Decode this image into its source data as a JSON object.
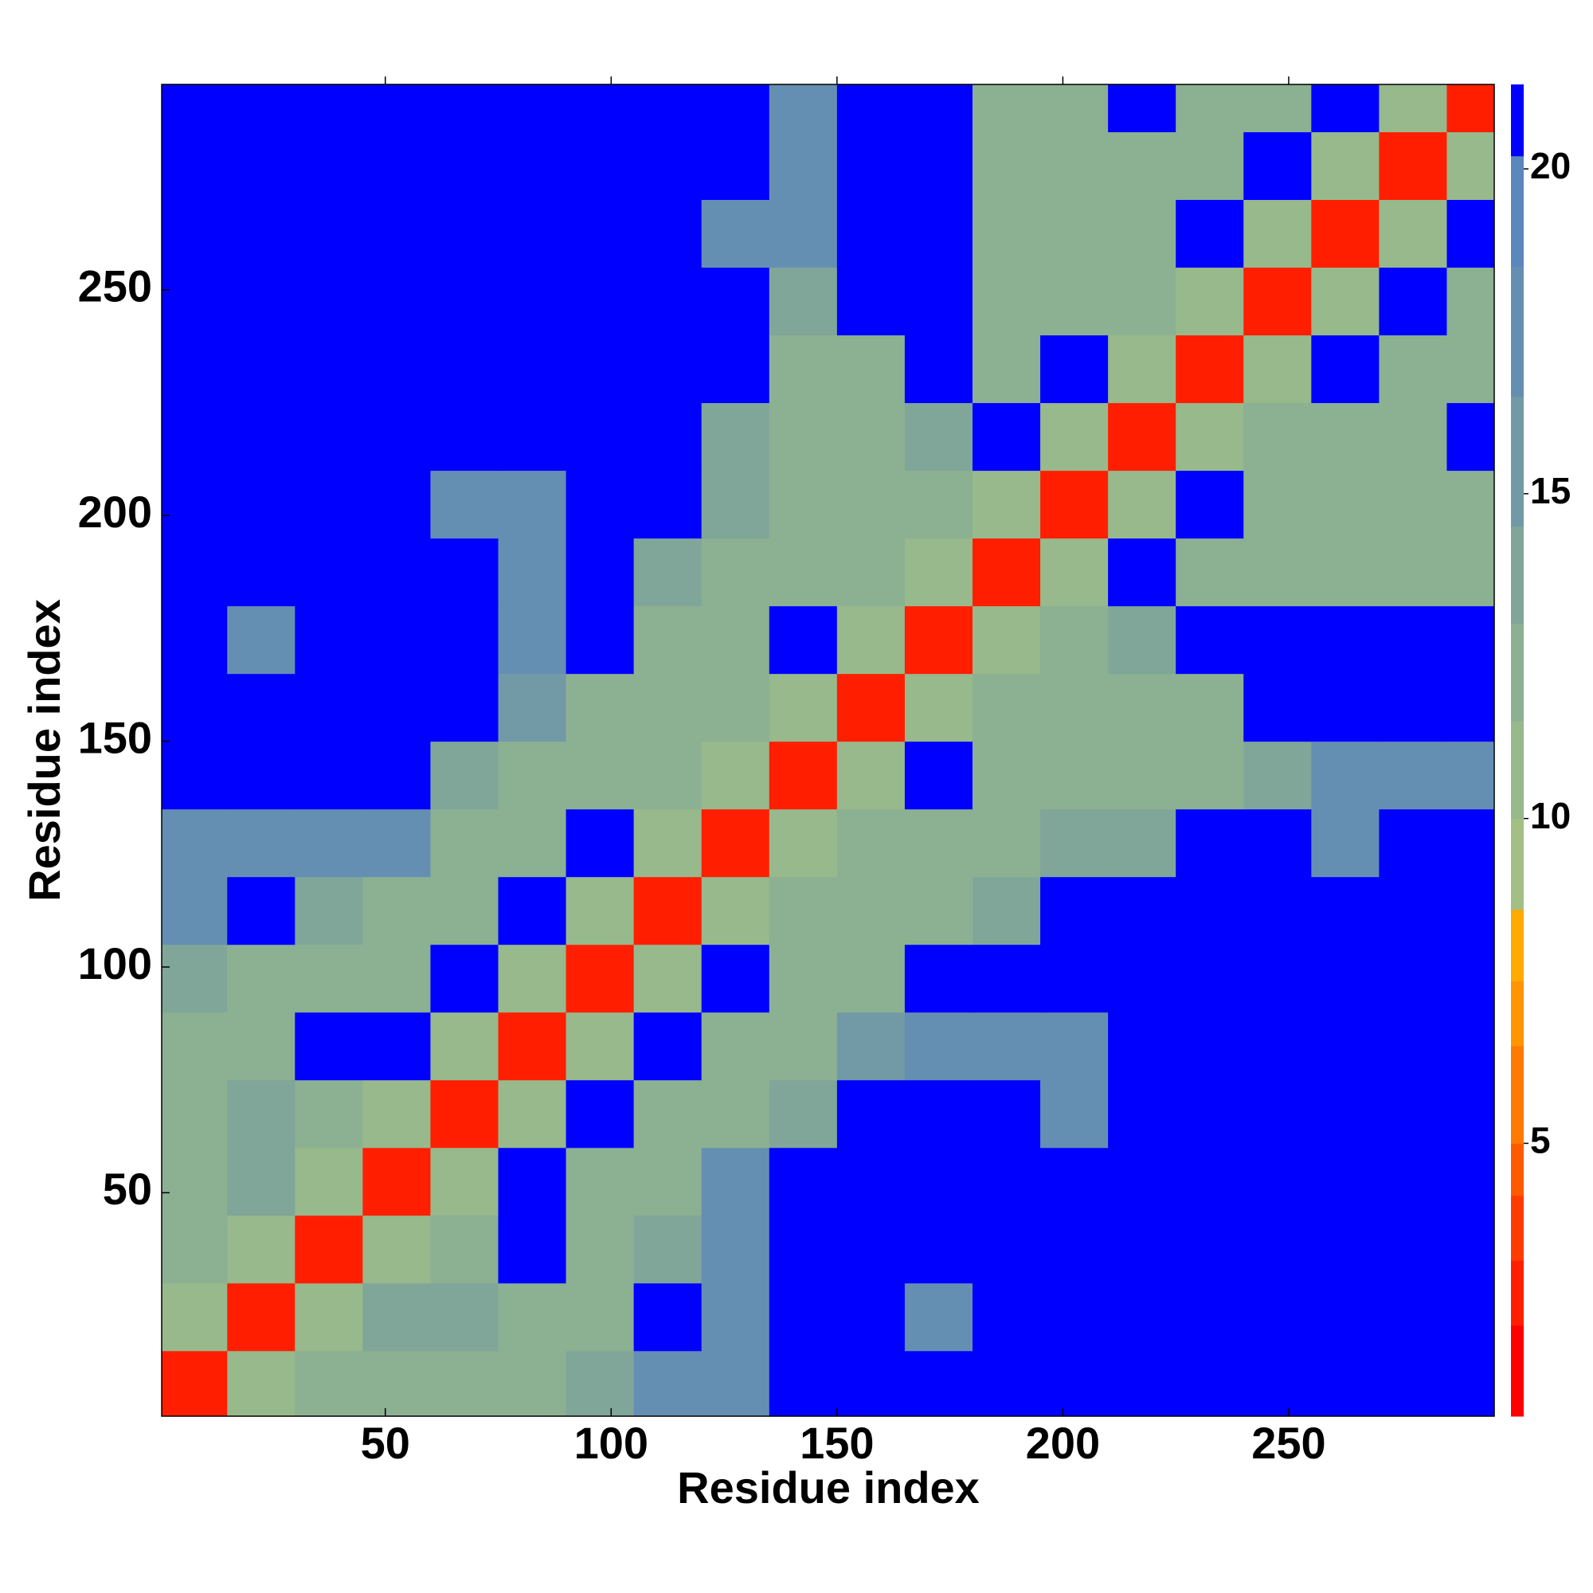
{
  "chart_data": {
    "type": "heatmap",
    "xlabel": "Residue index",
    "ylabel": "Residue index",
    "x": [
      7.5,
      22.5,
      37.5,
      52.5,
      67.5,
      82.5,
      97.5,
      112.5,
      127.5,
      142.5,
      157.5,
      172.5,
      187.5,
      202.5,
      217.5,
      232.5,
      247.5,
      262.5,
      277.5,
      292.5
    ],
    "y": [
      7.5,
      22.5,
      37.5,
      52.5,
      67.5,
      82.5,
      97.5,
      112.5,
      127.5,
      142.5,
      157.5,
      172.5,
      187.5,
      202.5,
      217.5,
      232.5,
      247.5,
      262.5,
      277.5,
      292.5
    ],
    "z": [
      [
        3,
        11,
        13,
        13,
        13,
        12,
        14,
        17,
        17,
        21,
        21,
        21,
        21,
        21,
        21,
        21,
        21,
        21,
        21,
        21
      ],
      [
        11,
        3,
        11,
        14,
        14,
        12,
        13,
        21,
        17,
        21,
        21,
        17,
        21,
        21,
        21,
        21,
        21,
        21,
        21,
        21
      ],
      [
        13,
        11,
        3,
        11,
        12,
        21,
        12,
        14,
        17,
        21,
        21,
        21,
        21,
        21,
        21,
        21,
        21,
        21,
        21,
        21
      ],
      [
        13,
        14,
        11,
        3,
        11,
        21,
        13,
        12,
        17,
        21,
        21,
        21,
        21,
        21,
        21,
        21,
        21,
        21,
        21,
        21
      ],
      [
        13,
        14,
        12,
        11,
        3,
        11,
        21,
        12,
        12,
        14,
        21,
        21,
        21,
        17,
        21,
        21,
        21,
        21,
        21,
        21
      ],
      [
        12,
        12,
        21,
        21,
        11,
        3,
        11,
        21,
        12,
        12,
        16,
        17,
        17,
        17,
        21,
        21,
        21,
        21,
        21,
        21
      ],
      [
        14,
        13,
        12,
        13,
        21,
        11,
        3,
        11,
        21,
        13,
        13,
        21,
        21,
        21,
        21,
        21,
        21,
        21,
        21,
        21
      ],
      [
        17,
        21,
        14,
        12,
        12,
        21,
        11,
        3,
        11,
        12,
        13,
        13,
        14,
        21,
        21,
        21,
        21,
        21,
        21,
        21
      ],
      [
        17,
        17,
        17,
        17,
        12,
        12,
        21,
        11,
        3,
        11,
        12,
        12,
        13,
        14,
        14,
        21,
        21,
        17,
        21,
        21
      ],
      [
        21,
        21,
        21,
        21,
        14,
        12,
        13,
        12,
        11,
        3,
        11,
        21,
        13,
        12,
        13,
        13,
        14,
        17,
        17,
        17
      ],
      [
        21,
        21,
        21,
        21,
        21,
        16,
        13,
        13,
        12,
        11,
        3,
        11,
        12,
        12,
        12,
        13,
        21,
        21,
        21,
        21
      ],
      [
        21,
        17,
        21,
        21,
        21,
        17,
        21,
        13,
        12,
        21,
        11,
        3,
        11,
        12,
        14,
        21,
        21,
        21,
        21,
        21
      ],
      [
        21,
        21,
        21,
        21,
        21,
        17,
        21,
        14,
        13,
        13,
        12,
        11,
        3,
        11,
        21,
        13,
        13,
        13,
        12,
        12
      ],
      [
        21,
        21,
        21,
        21,
        17,
        17,
        21,
        21,
        14,
        12,
        12,
        12,
        11,
        3,
        11,
        21,
        12,
        13,
        12,
        12
      ],
      [
        21,
        21,
        21,
        21,
        21,
        21,
        21,
        21,
        14,
        13,
        12,
        14,
        21,
        11,
        3,
        11,
        12,
        12,
        13,
        21
      ],
      [
        21,
        21,
        21,
        21,
        21,
        21,
        21,
        21,
        21,
        13,
        13,
        21,
        13,
        21,
        11,
        3,
        11,
        21,
        12,
        13
      ],
      [
        21,
        21,
        21,
        21,
        21,
        21,
        21,
        21,
        21,
        14,
        21,
        21,
        13,
        12,
        12,
        11,
        3,
        11,
        21,
        12
      ],
      [
        21,
        21,
        21,
        21,
        21,
        21,
        21,
        21,
        17,
        17,
        21,
        21,
        13,
        13,
        12,
        21,
        11,
        3,
        11,
        21
      ],
      [
        21,
        21,
        21,
        21,
        21,
        21,
        21,
        21,
        21,
        17,
        21,
        21,
        12,
        12,
        13,
        12,
        21,
        11,
        3,
        11
      ],
      [
        21,
        21,
        21,
        21,
        21,
        21,
        21,
        21,
        21,
        17,
        21,
        21,
        12,
        12,
        21,
        13,
        12,
        21,
        11,
        3
      ]
    ],
    "xlim": [
      0.5,
      295.5
    ],
    "ylim": [
      0.5,
      295.5
    ],
    "xticks": [
      50,
      100,
      150,
      200,
      250
    ],
    "yticks": [
      50,
      100,
      150,
      200,
      250
    ],
    "color_levels": [
      0.8,
      2.2,
      3.2,
      4.2,
      5.0,
      6.5,
      7.5,
      8.6,
      10,
      11.5,
      13,
      14.5,
      16.5,
      18.5,
      20.2,
      21.3
    ],
    "colors": [
      "#ff0000",
      "#ff1f00",
      "#ff3c00",
      "#ff5a00",
      "#ff7a00",
      "#ff9500",
      "#ffaa00",
      "#a3bf84",
      "#97b98c",
      "#8cb092",
      "#80a69a",
      "#7299a6",
      "#658fb2",
      "#5b87bc",
      "#0000ff"
    ],
    "colorbar_ticks": [
      5,
      10,
      15,
      20
    ]
  }
}
